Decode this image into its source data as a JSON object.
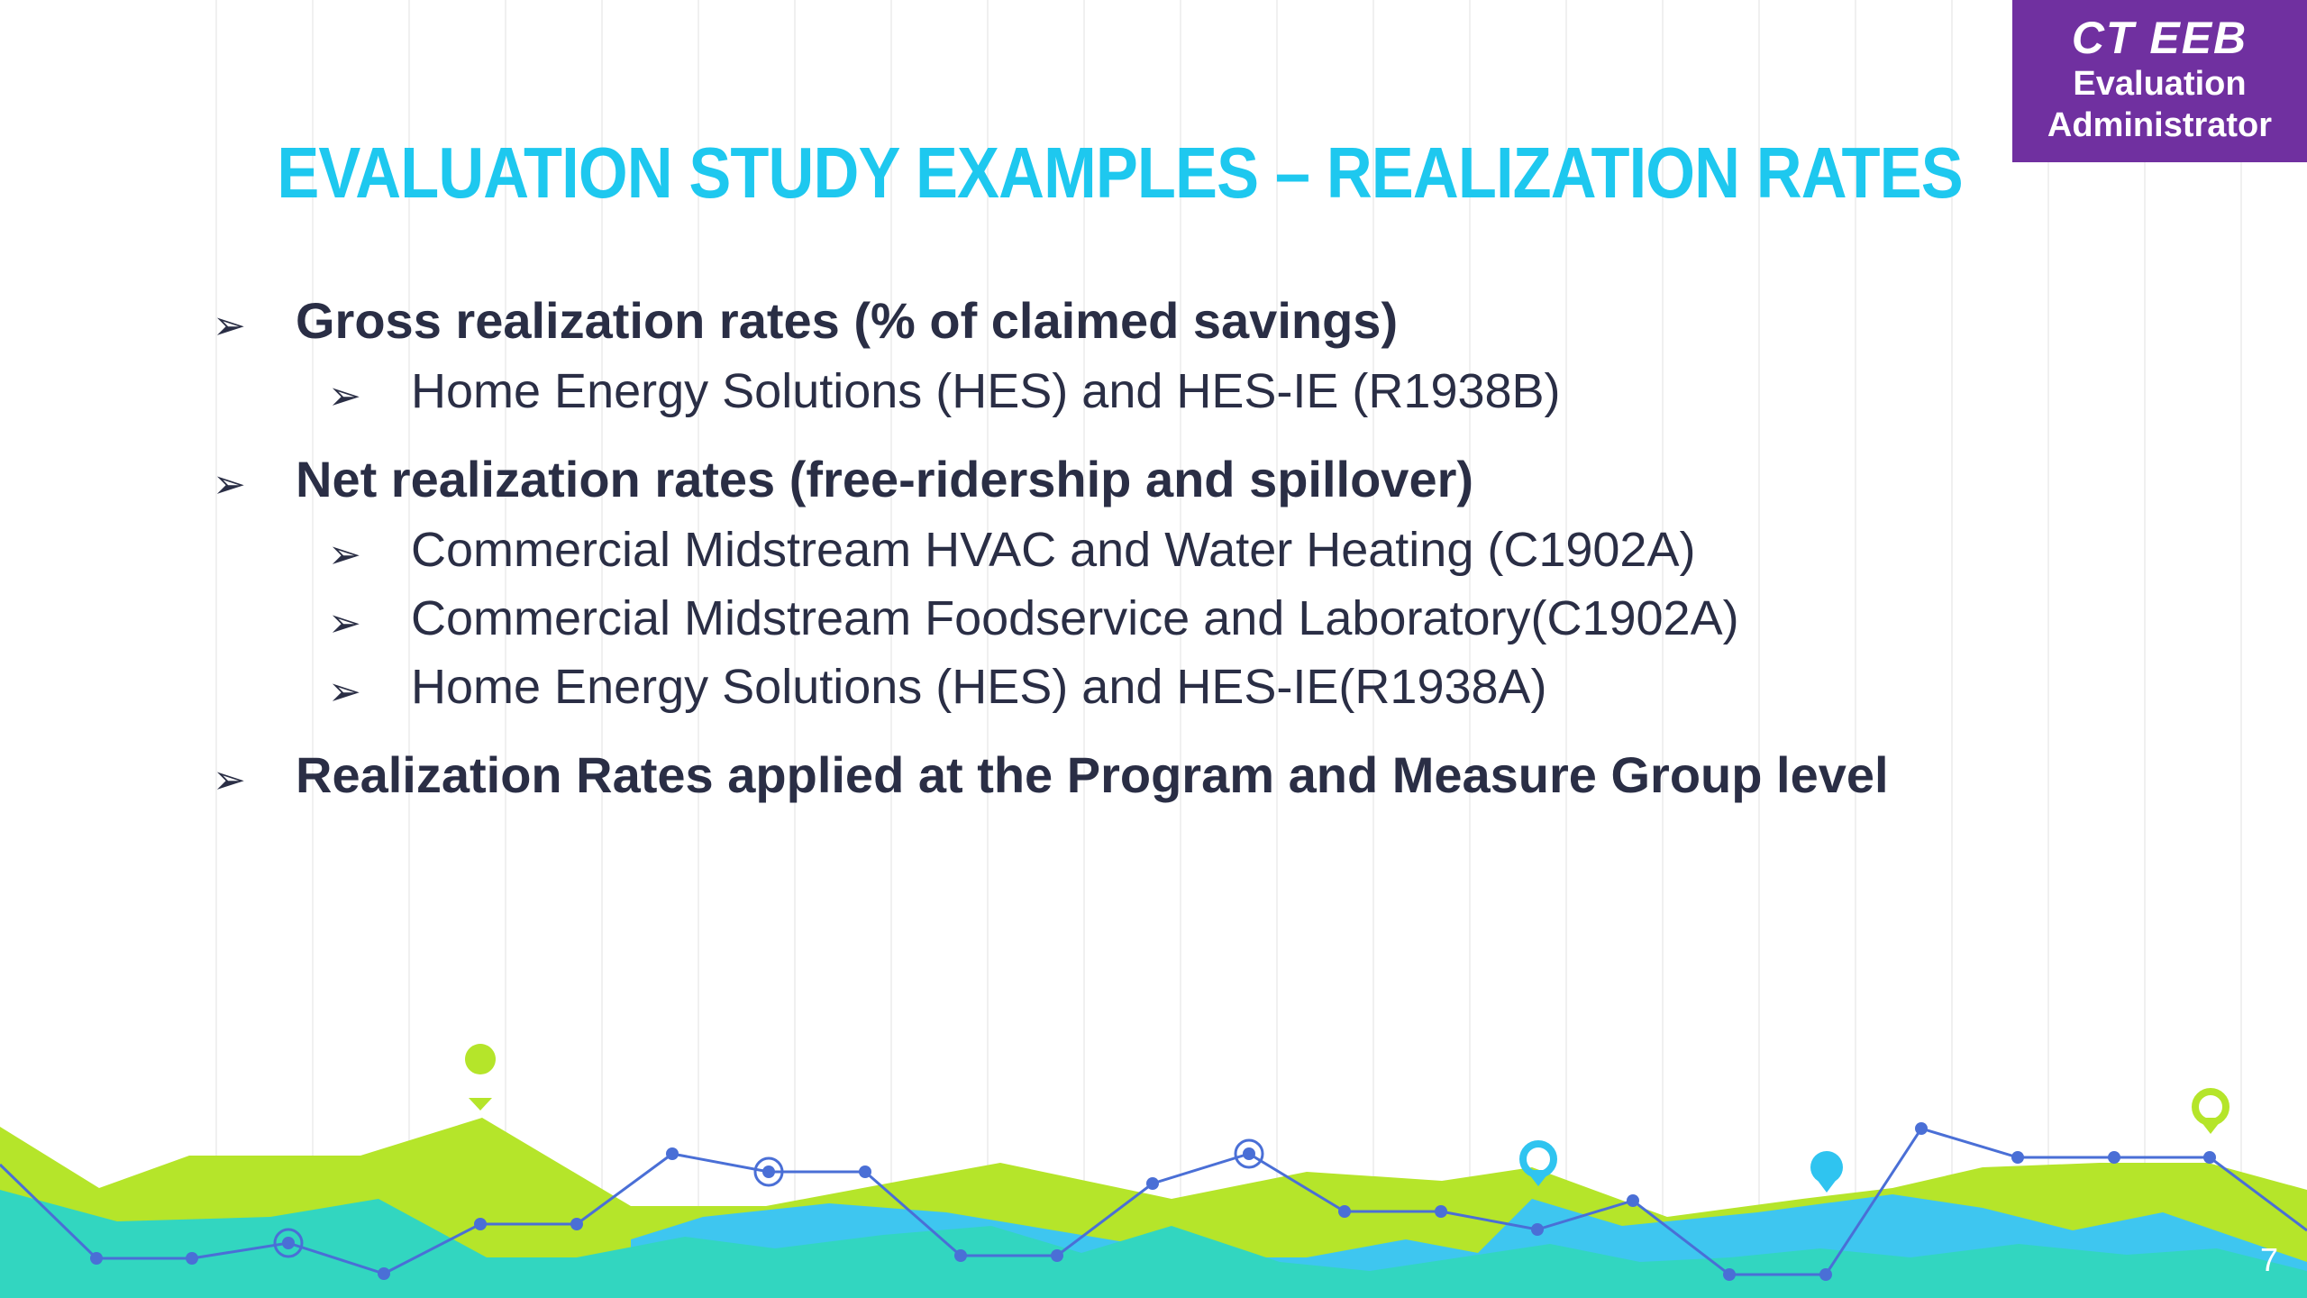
{
  "badge": {
    "line1": "CT EEB",
    "line2": "Evaluation",
    "line3": "Administrator"
  },
  "title": "EVALUATION STUDY EXAMPLES – REALIZATION RATES",
  "bullets": [
    {
      "level": 1,
      "text": "Gross realization rates (% of claimed savings)"
    },
    {
      "level": 2,
      "text": "Home Energy Solutions (HES) and HES-IE (R1938B)"
    },
    {
      "level": 1,
      "text": "Net realization rates (free-ridership and spillover)"
    },
    {
      "level": 2,
      "text": "Commercial Midstream HVAC and Water Heating (C1902A)"
    },
    {
      "level": 2,
      "text": "Commercial Midstream Foodservice and Laboratory(C1902A)"
    },
    {
      "level": 2,
      "text": "Home Energy Solutions (HES) and HES-IE(R1938A)"
    },
    {
      "level": 1,
      "text": "Realization Rates applied at the Program and Measure Group level"
    }
  ],
  "bullet_arrow": "➢",
  "page_number": "7",
  "colors": {
    "title": "#1ec8ef",
    "badge_bg": "#7030a0",
    "body_text": "#2a2e45",
    "lime": "#b5e52a",
    "teal": "#32d6c0",
    "sky": "#3ec6f0",
    "line": "#4a6fd6"
  }
}
